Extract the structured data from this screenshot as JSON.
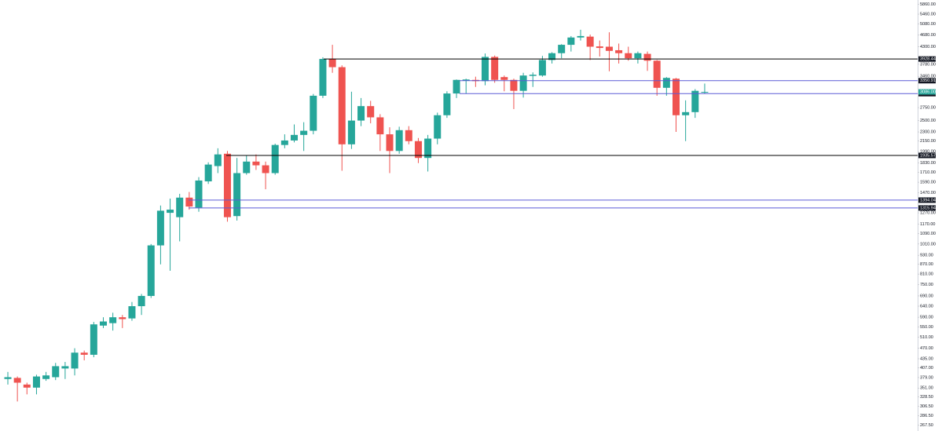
{
  "chart_data": {
    "type": "candlestick",
    "log_scale": true,
    "up_color": "#26a69a",
    "down_color": "#ef5350",
    "ylim": [
      256,
      6058
    ],
    "yticks": [
      {
        "value": 5860,
        "label": "5860.00"
      },
      {
        "value": 5460,
        "label": "5460.00"
      },
      {
        "value": 5080,
        "label": "5080.00"
      },
      {
        "value": 4680,
        "label": "4680.00"
      },
      {
        "value": 4300,
        "label": "4300.00"
      },
      {
        "value": 3780,
        "label": "3780.00"
      },
      {
        "value": 3460,
        "label": "3460.00"
      },
      {
        "value": 2750,
        "label": "2750.00"
      },
      {
        "value": 2500,
        "label": "2500.00"
      },
      {
        "value": 2300,
        "label": "2300.00"
      },
      {
        "value": 2150,
        "label": "2150.00"
      },
      {
        "value": 1990,
        "label": "1990.00"
      },
      {
        "value": 1830,
        "label": "1830.00"
      },
      {
        "value": 1710,
        "label": "1710.00"
      },
      {
        "value": 1590,
        "label": "1590.00"
      },
      {
        "value": 1470,
        "label": "1470.00"
      },
      {
        "value": 1270,
        "label": "1270.00"
      },
      {
        "value": 1170,
        "label": "1170.00"
      },
      {
        "value": 1090,
        "label": "1090.00"
      },
      {
        "value": 1010,
        "label": "1010.00"
      },
      {
        "value": 930,
        "label": "930.00"
      },
      {
        "value": 870,
        "label": "870.00"
      },
      {
        "value": 810,
        "label": "810.00"
      },
      {
        "value": 750,
        "label": "750.00"
      },
      {
        "value": 690,
        "label": "690.00"
      },
      {
        "value": 640,
        "label": "640.00"
      },
      {
        "value": 590,
        "label": "590.00"
      },
      {
        "value": 550,
        "label": "550.00"
      },
      {
        "value": 510,
        "label": "510.00"
      },
      {
        "value": 470,
        "label": "470.00"
      },
      {
        "value": 435,
        "label": "435.00"
      },
      {
        "value": 407,
        "label": "407.00"
      },
      {
        "value": 379,
        "label": "379.00"
      },
      {
        "value": 351,
        "label": "351.00"
      },
      {
        "value": 328.5,
        "label": "328.50"
      },
      {
        "value": 306.5,
        "label": "306.50"
      },
      {
        "value": 286.5,
        "label": "286.50"
      },
      {
        "value": 267.5,
        "label": "267.50"
      }
    ],
    "open": [
      375,
      378,
      360,
      352,
      375,
      380,
      405,
      405,
      455,
      448,
      555,
      565,
      590,
      585,
      640,
      690,
      1000,
      1270,
      1230,
      1420,
      1320,
      1600,
      1790,
      1960,
      1240,
      1700,
      1850,
      1800,
      1700,
      2090,
      2160,
      2250,
      2320,
      3000,
      3930,
      3700,
      2100,
      2500,
      2780,
      2560,
      2260,
      2000,
      2330,
      2150,
      1900,
      2190,
      2600,
      3050,
      3350,
      3370,
      3340,
      3990,
      3440,
      3370,
      3110,
      3470,
      3480,
      3900,
      4100,
      4360,
      4600,
      4630,
      4310,
      4300,
      4190,
      4100,
      3950,
      4080,
      3880,
      3180,
      3400,
      2600,
      2660,
      3070
    ],
    "high": [
      395,
      382,
      365,
      387,
      395,
      422,
      425,
      470,
      462,
      570,
      590,
      610,
      600,
      660,
      700,
      1010,
      1340,
      1410,
      1460,
      1480,
      1650,
      1840,
      2040,
      2000,
      1900,
      1940,
      1950,
      1850,
      2110,
      2260,
      2430,
      2470,
      3040,
      3980,
      4360,
      3750,
      3090,
      2950,
      2890,
      2620,
      2380,
      2390,
      2400,
      2200,
      2250,
      2650,
      3100,
      3380,
      3400,
      3450,
      4090,
      4030,
      3480,
      3400,
      3550,
      3560,
      4020,
      4130,
      4380,
      4650,
      4870,
      4700,
      4500,
      4780,
      4400,
      4300,
      4150,
      4150,
      3900,
      3440,
      3420,
      2900,
      3150,
      3280
    ],
    "low": [
      360,
      318,
      335,
      335,
      370,
      372,
      375,
      385,
      430,
      440,
      545,
      535,
      545,
      575,
      600,
      680,
      870,
      830,
      1030,
      1300,
      1280,
      1570,
      1700,
      1190,
      1200,
      1680,
      1740,
      1510,
      1680,
      2040,
      2130,
      2000,
      2260,
      2950,
      3550,
      1730,
      2030,
      2400,
      2450,
      2000,
      1700,
      1960,
      2100,
      1830,
      1720,
      2100,
      2550,
      2950,
      3050,
      3200,
      3240,
      3300,
      3100,
      2720,
      2960,
      3200,
      3450,
      3800,
      3950,
      4150,
      4500,
      3900,
      4000,
      3590,
      3800,
      3880,
      3800,
      3600,
      3000,
      3000,
      2300,
      2150,
      2550,
      3050
    ],
    "close": [
      380,
      365,
      352,
      382,
      385,
      412,
      412,
      455,
      448,
      560,
      572,
      590,
      582,
      640,
      690,
      1000,
      1290,
      1300,
      1420,
      1330,
      1610,
      1810,
      1950,
      1230,
      1700,
      1850,
      1800,
      1700,
      2090,
      2160,
      2250,
      2320,
      3000,
      3930,
      3700,
      2100,
      2500,
      2780,
      2560,
      2260,
      2000,
      2330,
      2150,
      1900,
      2190,
      2600,
      3050,
      3370,
      3380,
      3340,
      3990,
      3370,
      3370,
      3110,
      3480,
      3500,
      3900,
      4100,
      4360,
      4600,
      4650,
      4300,
      4260,
      4170,
      4100,
      3950,
      4100,
      3880,
      3180,
      3420,
      2600,
      2660,
      3110,
      3086
    ],
    "levels": [
      {
        "value": 3928.44,
        "label": "3928.44",
        "color": "#000000"
      },
      {
        "value": 3350.91,
        "label": "3350.91",
        "color": "#5b5bd6"
      },
      {
        "value": 3047.21,
        "label": "3047.21",
        "color": "#5b5bd6"
      },
      {
        "value": 1935.57,
        "label": "1935.57",
        "color": "#000000"
      },
      {
        "value": 1394.04,
        "label": "1394.04",
        "color": "#5b5bd6"
      },
      {
        "value": 1315.94,
        "label": "1315.94",
        "color": "#5b5bd6"
      }
    ],
    "last_price": {
      "value": 3086,
      "label": "3086.00",
      "color": "#26a69a"
    }
  }
}
